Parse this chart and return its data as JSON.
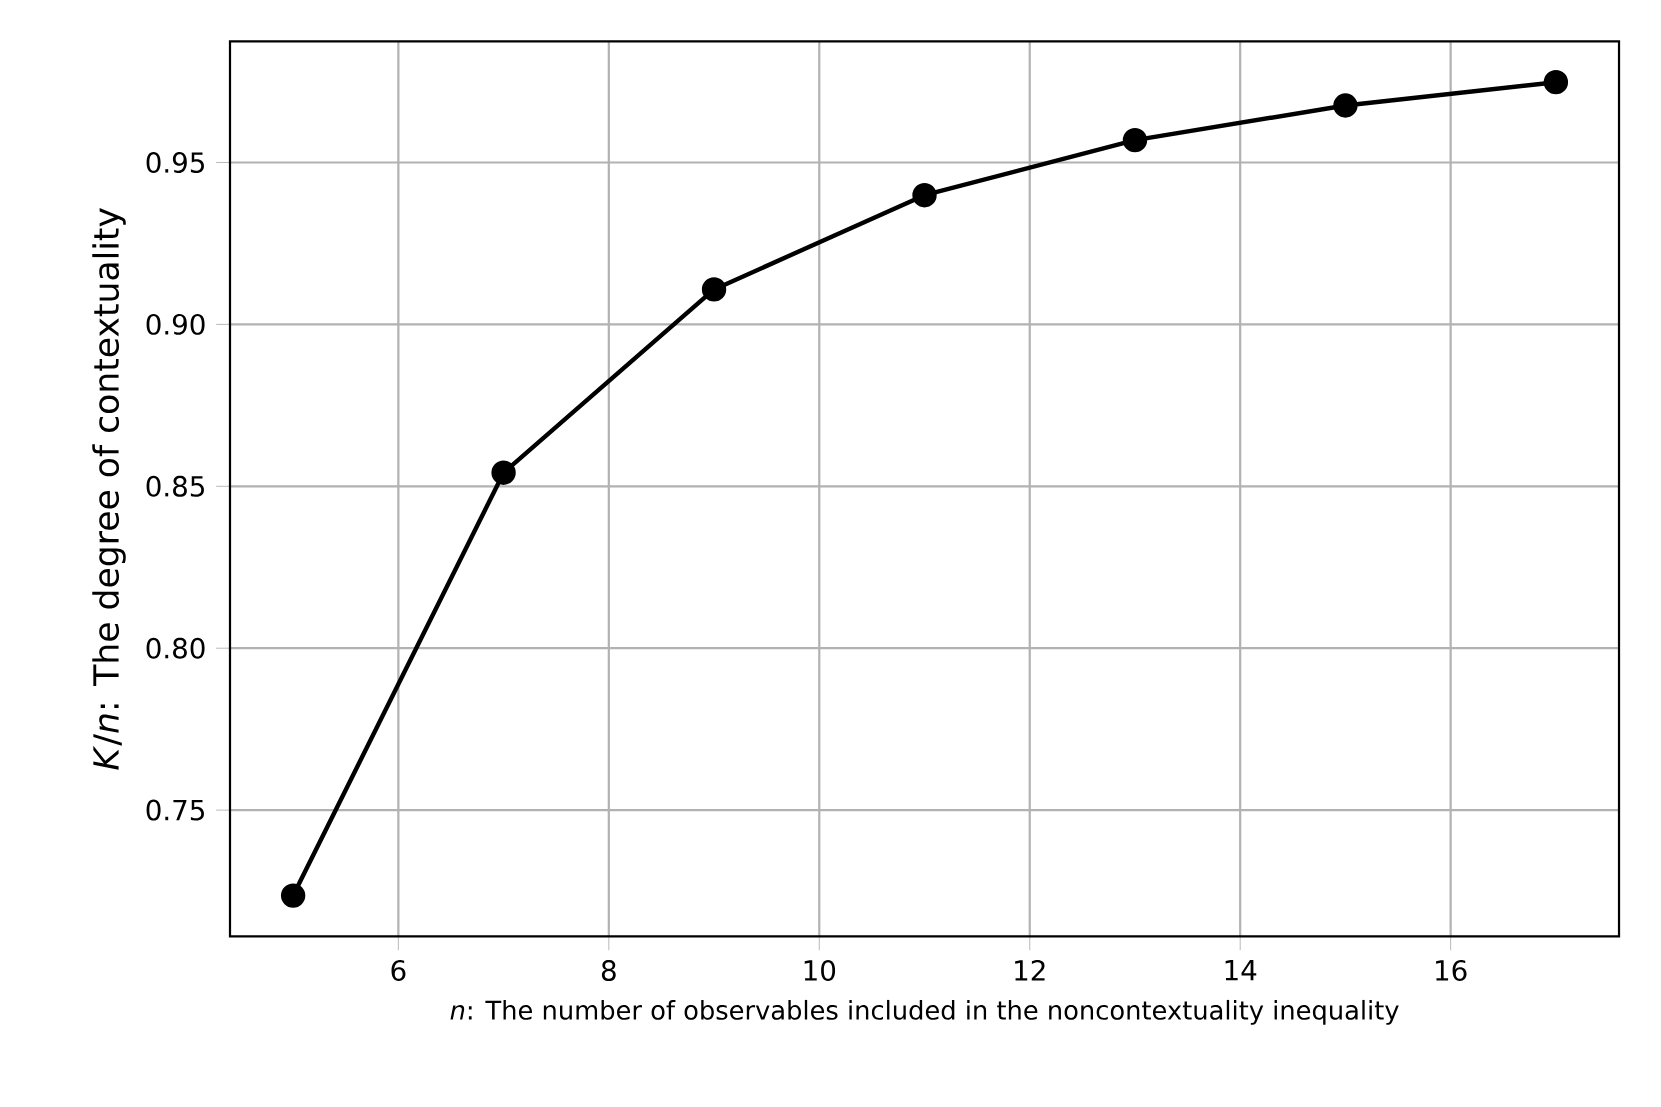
{
  "chart_data": {
    "type": "line",
    "xlabel": "*n*: The number of observables included in the noncontextuality inequality",
    "ylabel": "*K*/*n*: The degree of contextuality",
    "x": [
      5,
      7,
      9,
      11,
      13,
      15,
      17
    ],
    "series": [
      {
        "color": "#000000",
        "values": [
          0.7236,
          0.8542,
          0.9108,
          0.9399,
          0.9569,
          0.9676,
          0.9748
        ]
      }
    ],
    "xlim": [
      4.4,
      17.6
    ],
    "ylim": [
      0.711,
      0.9874
    ],
    "xticks": [
      6,
      8,
      10,
      12,
      14,
      16
    ],
    "yticks": [
      {
        "value": 0.75,
        "label": "0.75"
      },
      {
        "value": 0.8,
        "label": "0.80"
      },
      {
        "value": 0.85,
        "label": "0.85"
      },
      {
        "value": 0.9,
        "label": "0.90"
      },
      {
        "value": 0.95,
        "label": "0.95"
      }
    ],
    "grid": true,
    "marker": "circle",
    "line_style": "solid"
  }
}
